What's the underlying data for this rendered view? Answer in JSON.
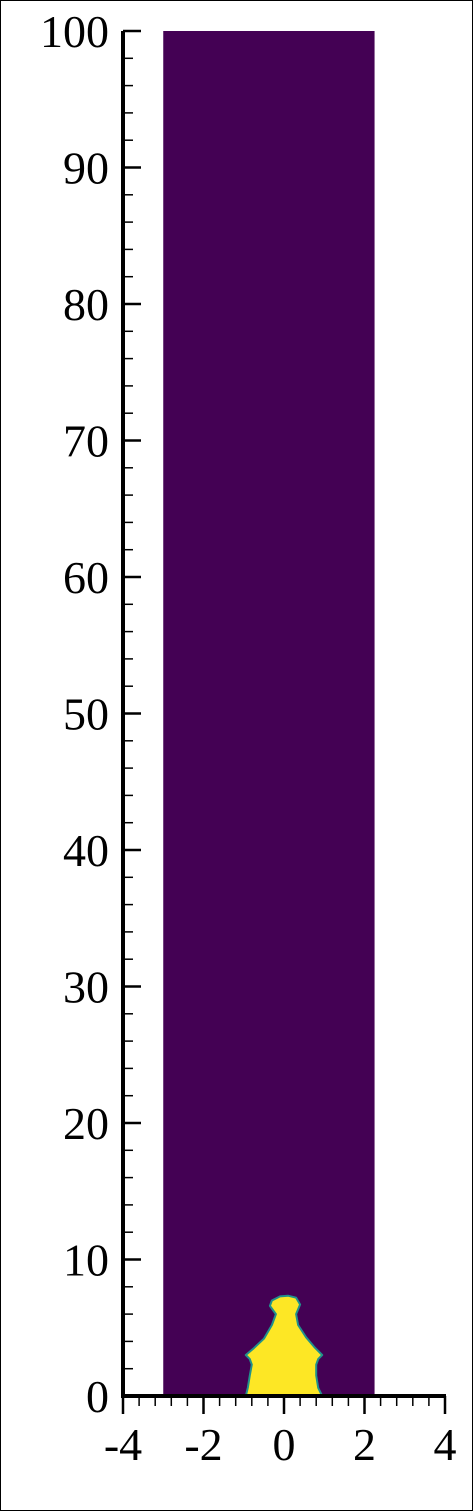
{
  "chart_data": {
    "type": "heatmap",
    "title": "",
    "xlabel": "",
    "ylabel": "",
    "xlim": [
      -4,
      4
    ],
    "ylim": [
      0,
      100
    ],
    "x_ticks": [
      {
        "value": -4,
        "label": "-4"
      },
      {
        "value": -2,
        "label": "-2"
      },
      {
        "value": 0,
        "label": "0"
      },
      {
        "value": 2,
        "label": "2"
      },
      {
        "value": 4,
        "label": "4"
      }
    ],
    "y_ticks": [
      {
        "value": 0,
        "label": "0"
      },
      {
        "value": 10,
        "label": "10"
      },
      {
        "value": 20,
        "label": "20"
      },
      {
        "value": 30,
        "label": "30"
      },
      {
        "value": 40,
        "label": "40"
      },
      {
        "value": 50,
        "label": "50"
      },
      {
        "value": 60,
        "label": "60"
      },
      {
        "value": 70,
        "label": "70"
      },
      {
        "value": 80,
        "label": "80"
      },
      {
        "value": 90,
        "label": "90"
      },
      {
        "value": 100,
        "label": "100"
      }
    ],
    "x_minor_step": 0.4,
    "y_minor_step": 2,
    "field_extent": {
      "x": [
        -3.0,
        2.25
      ],
      "y": [
        0,
        100
      ]
    },
    "background_color": "#440154",
    "plume_color": "#fde725",
    "plume_edge_color": "#21918c",
    "plume_boundary": [
      [
        -0.95,
        0.0
      ],
      [
        -0.9,
        0.6
      ],
      [
        -0.85,
        1.5
      ],
      [
        -0.8,
        2.3
      ],
      [
        -0.85,
        2.7
      ],
      [
        -0.95,
        3.0
      ],
      [
        -0.75,
        3.5
      ],
      [
        -0.5,
        4.2
      ],
      [
        -0.3,
        5.2
      ],
      [
        -0.2,
        6.0
      ],
      [
        -0.35,
        6.6
      ],
      [
        -0.3,
        7.0
      ],
      [
        -0.1,
        7.3
      ],
      [
        0.1,
        7.35
      ],
      [
        0.3,
        7.2
      ],
      [
        0.4,
        6.7
      ],
      [
        0.3,
        6.0
      ],
      [
        0.35,
        5.2
      ],
      [
        0.55,
        4.3
      ],
      [
        0.75,
        3.6
      ],
      [
        0.95,
        3.0
      ],
      [
        0.85,
        2.7
      ],
      [
        0.8,
        2.3
      ],
      [
        0.8,
        1.5
      ],
      [
        0.85,
        0.6
      ],
      [
        0.95,
        0.0
      ]
    ]
  }
}
